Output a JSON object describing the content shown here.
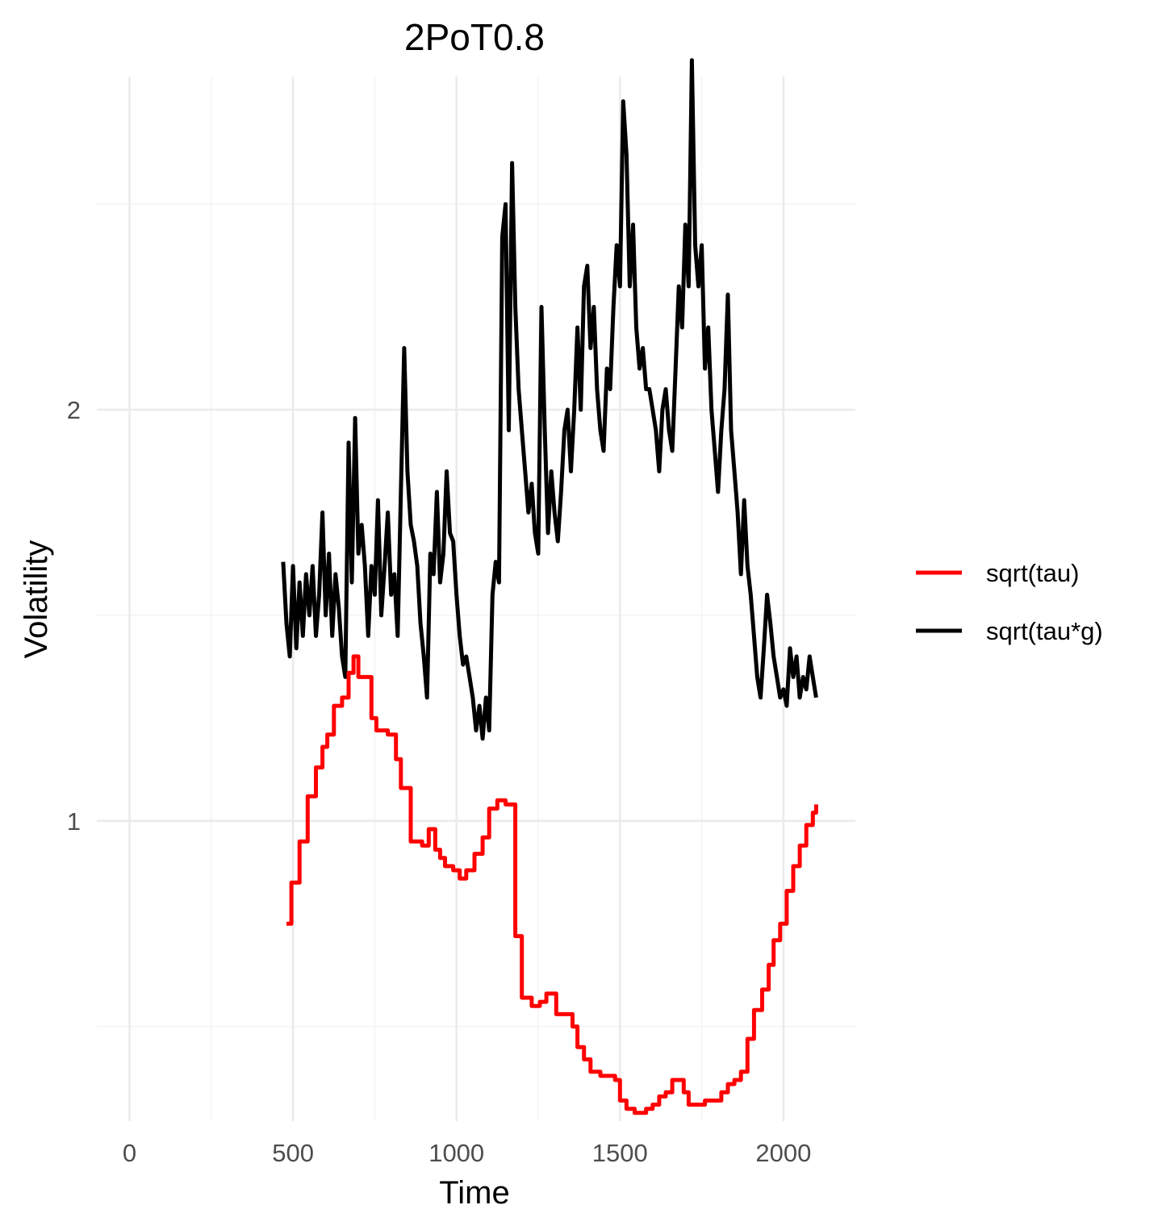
{
  "chart_data": {
    "type": "line",
    "title": "2PoT0.8",
    "xlabel": "Time",
    "ylabel": "Volatility",
    "xlim": [
      -100,
      2220
    ],
    "ylim": [
      0.27,
      2.81
    ],
    "x_ticks": [
      0,
      500,
      1000,
      1500,
      2000
    ],
    "x_tick_labels": [
      "0",
      "500",
      "1000",
      "1500",
      "2000"
    ],
    "y_ticks": [
      1,
      2
    ],
    "y_tick_labels": [
      "1",
      "2"
    ],
    "y_minor_ticks": [
      0.5,
      1.5,
      2.5
    ],
    "x_minor_ticks": [
      250,
      750,
      1250,
      1750
    ],
    "grid": true,
    "legend_position": "right",
    "series": [
      {
        "name": "sqrt(tau)",
        "color": "#ff0000",
        "step": true,
        "x": [
          480,
          495,
          520,
          545,
          570,
          590,
          605,
          625,
          650,
          670,
          685,
          700,
          740,
          755,
          790,
          815,
          830,
          860,
          895,
          915,
          935,
          950,
          965,
          990,
          1010,
          1030,
          1055,
          1080,
          1100,
          1125,
          1150,
          1160,
          1180,
          1200,
          1230,
          1255,
          1275,
          1305,
          1340,
          1355,
          1370,
          1390,
          1410,
          1440,
          1470,
          1485,
          1500,
          1520,
          1545,
          1560,
          1580,
          1600,
          1620,
          1640,
          1660,
          1680,
          1695,
          1710,
          1730,
          1760,
          1790,
          1810,
          1830,
          1850,
          1870,
          1890,
          1910,
          1920,
          1935,
          1955,
          1970,
          1990,
          2010,
          2030,
          2050,
          2070,
          2090,
          2100
        ],
        "y": [
          0.75,
          0.85,
          0.95,
          1.06,
          1.13,
          1.18,
          1.21,
          1.28,
          1.3,
          1.36,
          1.4,
          1.35,
          1.25,
          1.22,
          1.21,
          1.15,
          1.08,
          0.95,
          0.94,
          0.98,
          0.93,
          0.91,
          0.89,
          0.88,
          0.86,
          0.88,
          0.92,
          0.96,
          1.03,
          1.05,
          1.04,
          1.04,
          0.72,
          0.57,
          0.55,
          0.56,
          0.58,
          0.53,
          0.53,
          0.5,
          0.45,
          0.42,
          0.39,
          0.38,
          0.38,
          0.37,
          0.32,
          0.3,
          0.29,
          0.29,
          0.3,
          0.31,
          0.33,
          0.34,
          0.37,
          0.37,
          0.34,
          0.31,
          0.31,
          0.32,
          0.32,
          0.34,
          0.36,
          0.37,
          0.39,
          0.47,
          0.54,
          0.54,
          0.59,
          0.65,
          0.71,
          0.75,
          0.83,
          0.89,
          0.94,
          0.99,
          1.02,
          1.04
        ],
        "x_end": 2100
      },
      {
        "name": "sqrt(tau*g)",
        "color": "#000000",
        "step": false,
        "x": [
          470,
          480,
          490,
          500,
          510,
          520,
          530,
          540,
          550,
          560,
          570,
          580,
          590,
          600,
          610,
          620,
          630,
          640,
          650,
          660,
          670,
          680,
          690,
          700,
          710,
          720,
          730,
          740,
          750,
          760,
          770,
          780,
          790,
          800,
          810,
          820,
          830,
          840,
          850,
          860,
          870,
          880,
          890,
          900,
          910,
          920,
          930,
          940,
          950,
          960,
          970,
          980,
          990,
          1000,
          1010,
          1020,
          1030,
          1040,
          1050,
          1060,
          1070,
          1080,
          1090,
          1100,
          1110,
          1120,
          1130,
          1140,
          1150,
          1160,
          1170,
          1180,
          1190,
          1200,
          1210,
          1220,
          1230,
          1240,
          1250,
          1260,
          1270,
          1280,
          1290,
          1300,
          1310,
          1320,
          1330,
          1340,
          1350,
          1360,
          1370,
          1380,
          1390,
          1400,
          1410,
          1420,
          1430,
          1440,
          1450,
          1460,
          1470,
          1480,
          1490,
          1500,
          1510,
          1520,
          1530,
          1540,
          1550,
          1560,
          1570,
          1580,
          1590,
          1600,
          1610,
          1620,
          1630,
          1640,
          1650,
          1660,
          1670,
          1680,
          1690,
          1700,
          1710,
          1720,
          1730,
          1740,
          1750,
          1760,
          1770,
          1780,
          1790,
          1800,
          1810,
          1820,
          1830,
          1840,
          1850,
          1860,
          1870,
          1880,
          1890,
          1900,
          1910,
          1920,
          1930,
          1940,
          1950,
          1960,
          1970,
          1980,
          1990,
          2000,
          2010,
          2020,
          2030,
          2040,
          2050,
          2060,
          2070,
          2080,
          2090,
          2100
        ],
        "y": [
          1.63,
          1.48,
          1.4,
          1.62,
          1.42,
          1.58,
          1.45,
          1.6,
          1.5,
          1.62,
          1.45,
          1.55,
          1.75,
          1.5,
          1.65,
          1.45,
          1.6,
          1.52,
          1.4,
          1.35,
          1.92,
          1.58,
          1.98,
          1.65,
          1.72,
          1.62,
          1.45,
          1.62,
          1.55,
          1.78,
          1.5,
          1.62,
          1.75,
          1.55,
          1.6,
          1.45,
          1.8,
          2.15,
          1.85,
          1.72,
          1.68,
          1.62,
          1.48,
          1.4,
          1.3,
          1.65,
          1.6,
          1.8,
          1.58,
          1.65,
          1.85,
          1.7,
          1.68,
          1.55,
          1.45,
          1.38,
          1.4,
          1.35,
          1.3,
          1.22,
          1.28,
          1.2,
          1.3,
          1.22,
          1.55,
          1.63,
          1.58,
          2.42,
          2.5,
          1.95,
          2.6,
          2.25,
          2.05,
          1.95,
          1.85,
          1.75,
          1.82,
          1.7,
          1.65,
          2.25,
          1.95,
          1.7,
          1.85,
          1.75,
          1.68,
          1.8,
          1.95,
          2.0,
          1.85,
          2.0,
          2.2,
          2.0,
          2.3,
          2.35,
          2.15,
          2.25,
          2.05,
          1.95,
          1.9,
          2.1,
          2.05,
          2.25,
          2.4,
          2.3,
          2.75,
          2.62,
          2.3,
          2.45,
          2.2,
          2.1,
          2.15,
          2.05,
          2.05,
          2.0,
          1.95,
          1.85,
          2.0,
          2.05,
          1.95,
          1.9,
          2.1,
          2.3,
          2.2,
          2.45,
          2.3,
          2.85,
          2.4,
          2.3,
          2.4,
          2.1,
          2.2,
          2.0,
          1.9,
          1.8,
          1.95,
          2.05,
          2.28,
          1.95,
          1.85,
          1.75,
          1.6,
          1.78,
          1.62,
          1.55,
          1.45,
          1.35,
          1.3,
          1.42,
          1.55,
          1.48,
          1.4,
          1.35,
          1.3,
          1.32,
          1.28,
          1.42,
          1.35,
          1.4,
          1.3,
          1.35,
          1.32,
          1.4,
          1.35,
          1.3
        ]
      }
    ]
  }
}
